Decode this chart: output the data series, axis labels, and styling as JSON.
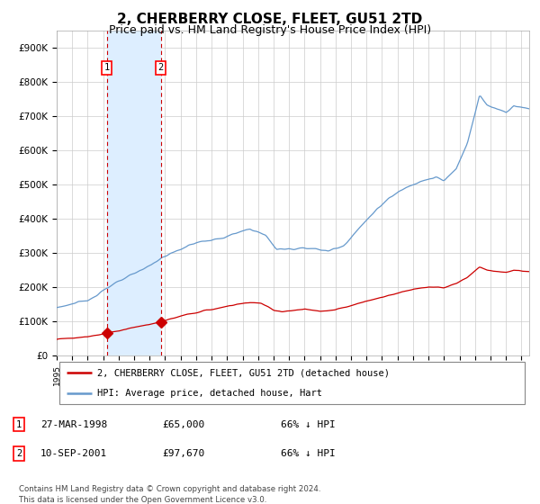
{
  "title": "2, CHERBERRY CLOSE, FLEET, GU51 2TD",
  "subtitle": "Price paid vs. HM Land Registry's House Price Index (HPI)",
  "title_fontsize": 11,
  "subtitle_fontsize": 9,
  "background_color": "#ffffff",
  "grid_color": "#cccccc",
  "hpi_line_color": "#6699cc",
  "price_line_color": "#cc0000",
  "shade_color": "#ddeeff",
  "dashed_line_color": "#cc0000",
  "ylim": [
    0,
    950000
  ],
  "yticks": [
    0,
    100000,
    200000,
    300000,
    400000,
    500000,
    600000,
    700000,
    800000,
    900000
  ],
  "ytick_labels": [
    "£0",
    "£100K",
    "£200K",
    "£300K",
    "£400K",
    "£500K",
    "£600K",
    "£700K",
    "£800K",
    "£900K"
  ],
  "xmin": 1995,
  "xmax": 2025.5,
  "sale1_date": 1998.23,
  "sale1_price": 65000,
  "sale1_label": "1",
  "sale2_date": 2001.71,
  "sale2_price": 97670,
  "sale2_label": "2",
  "legend_line1": "2, CHERBERRY CLOSE, FLEET, GU51 2TD (detached house)",
  "legend_line2": "HPI: Average price, detached house, Hart",
  "table_row1": [
    "1",
    "27-MAR-1998",
    "£65,000",
    "66% ↓ HPI"
  ],
  "table_row2": [
    "2",
    "10-SEP-2001",
    "£97,670",
    "66% ↓ HPI"
  ],
  "footnote": "Contains HM Land Registry data © Crown copyright and database right 2024.\nThis data is licensed under the Open Government Licence v3.0."
}
